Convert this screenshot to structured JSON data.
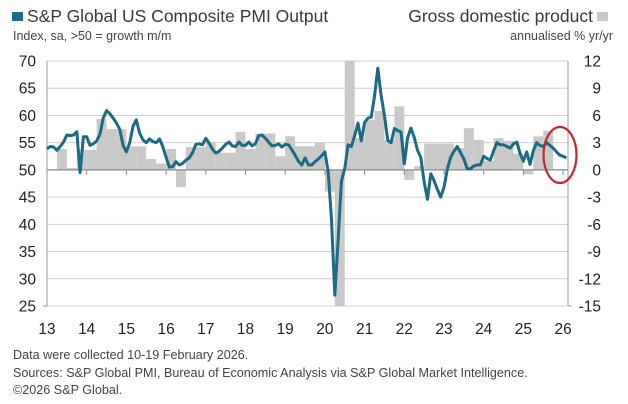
{
  "header": {
    "left_title": "S&P Global US Composite PMI Output",
    "left_subtitle": "Index, sa, >50 = growth m/m",
    "right_title": "Gross domestic product",
    "right_subtitle": "annualised % yr/yr"
  },
  "footer": {
    "line1": "Data were collected 10-19 February 2026.",
    "line2": "Sources: S&P Global PMI, Bureau of Economic Analysis via S&P Global Market Intelligence.",
    "line3": "©2026 S&P Global."
  },
  "colors": {
    "pmi": "#1b6a86",
    "gdp": "#c9c9c9",
    "highlight": "#c0282d",
    "grid": "#d0d0d0",
    "axis": "#9a9a9a"
  },
  "chart_data": {
    "type": "bar+line",
    "title": "",
    "grid": true,
    "legend": "top",
    "annotations": [
      "red ellipse highlighting latest readings"
    ],
    "x_tick_labels": [
      "13",
      "14",
      "15",
      "16",
      "17",
      "18",
      "19",
      "20",
      "21",
      "22",
      "23",
      "24",
      "25",
      "26"
    ],
    "x_range": [
      "2013-01",
      "2026-02"
    ],
    "left_axis": {
      "label": "Index, sa, >50 = growth m/m",
      "ylim": [
        25,
        70
      ],
      "ticks": [
        "70",
        "65",
        "60",
        "55",
        "50",
        "45",
        "40",
        "35",
        "30",
        "25"
      ]
    },
    "right_axis": {
      "label": "annualised % yr/yr",
      "ylim": [
        -15,
        12
      ],
      "ticks": [
        "12",
        "9",
        "6",
        "3",
        "0",
        "-3",
        "-6",
        "-9",
        "-12",
        "-15"
      ]
    },
    "series": [
      {
        "name": "S&P Global US Composite PMI Output",
        "type": "line",
        "axis": "left",
        "x": [
          "2013-01",
          "2013-02",
          "2013-03",
          "2013-04",
          "2013-05",
          "2013-06",
          "2013-07",
          "2013-08",
          "2013-09",
          "2013-10",
          "2013-11",
          "2013-12",
          "2014-01",
          "2014-02",
          "2014-03",
          "2014-04",
          "2014-05",
          "2014-06",
          "2014-07",
          "2014-08",
          "2014-09",
          "2014-10",
          "2014-11",
          "2014-12",
          "2015-01",
          "2015-02",
          "2015-03",
          "2015-04",
          "2015-05",
          "2015-06",
          "2015-07",
          "2015-08",
          "2015-09",
          "2015-10",
          "2015-11",
          "2015-12",
          "2016-01",
          "2016-02",
          "2016-03",
          "2016-04",
          "2016-05",
          "2016-06",
          "2016-07",
          "2016-08",
          "2016-09",
          "2016-10",
          "2016-11",
          "2016-12",
          "2017-01",
          "2017-02",
          "2017-03",
          "2017-04",
          "2017-05",
          "2017-06",
          "2017-07",
          "2017-08",
          "2017-09",
          "2017-10",
          "2017-11",
          "2017-12",
          "2018-01",
          "2018-02",
          "2018-03",
          "2018-04",
          "2018-05",
          "2018-06",
          "2018-07",
          "2018-08",
          "2018-09",
          "2018-10",
          "2018-11",
          "2018-12",
          "2019-01",
          "2019-02",
          "2019-03",
          "2019-04",
          "2019-05",
          "2019-06",
          "2019-07",
          "2019-08",
          "2019-09",
          "2019-10",
          "2019-11",
          "2019-12",
          "2020-01",
          "2020-02",
          "2020-03",
          "2020-04",
          "2020-05",
          "2020-06",
          "2020-07",
          "2020-08",
          "2020-09",
          "2020-10",
          "2020-11",
          "2020-12",
          "2021-01",
          "2021-02",
          "2021-03",
          "2021-04",
          "2021-05",
          "2021-06",
          "2021-07",
          "2021-08",
          "2021-09",
          "2021-10",
          "2021-11",
          "2021-12",
          "2022-01",
          "2022-02",
          "2022-03",
          "2022-04",
          "2022-05",
          "2022-06",
          "2022-07",
          "2022-08",
          "2022-09",
          "2022-10",
          "2022-11",
          "2022-12",
          "2023-01",
          "2023-02",
          "2023-03",
          "2023-04",
          "2023-05",
          "2023-06",
          "2023-07",
          "2023-08",
          "2023-09",
          "2023-10",
          "2023-11",
          "2023-12",
          "2024-01",
          "2024-02",
          "2024-03",
          "2024-04",
          "2024-05",
          "2024-06",
          "2024-07",
          "2024-08",
          "2024-09",
          "2024-10",
          "2024-11",
          "2024-12",
          "2025-01",
          "2025-02",
          "2025-03",
          "2025-04",
          "2025-05",
          "2025-06",
          "2025-07",
          "2025-08",
          "2025-09",
          "2025-10",
          "2025-11",
          "2025-12",
          "2026-01",
          "2026-02"
        ],
        "values": [
          53.9,
          54.3,
          54.2,
          53.6,
          54.3,
          55.1,
          56.4,
          56.3,
          56.4,
          57.0,
          49.5,
          56.1,
          56.1,
          54.5,
          54.8,
          55.3,
          56.5,
          59.5,
          60.9,
          60.3,
          59.5,
          58.6,
          57.4,
          54.5,
          53.3,
          55.0,
          58.0,
          59.2,
          56.8,
          55.5,
          55.0,
          55.7,
          55.2,
          55.0,
          55.7,
          54.3,
          52.3,
          50.5,
          50.6,
          51.5,
          50.9,
          51.2,
          51.8,
          52.2,
          53.2,
          54.7,
          54.8,
          54.6,
          55.8,
          54.9,
          53.8,
          53.1,
          53.4,
          54.0,
          54.7,
          55.1,
          54.4,
          54.3,
          55.1,
          54.5,
          54.5,
          55.1,
          54.4,
          54.8,
          56.3,
          56.4,
          55.8,
          55.1,
          54.4,
          54.5,
          54.8,
          54.2,
          54.7,
          54.6,
          53.7,
          52.7,
          51.6,
          50.9,
          52.2,
          50.9,
          50.9,
          51.5,
          52.0,
          52.6,
          53.3,
          49.6,
          40.9,
          27.0,
          37.0,
          47.9,
          50.3,
          54.6,
          54.3,
          56.3,
          58.6,
          55.3,
          58.7,
          59.5,
          59.7,
          63.5,
          68.7,
          63.7,
          59.9,
          55.4,
          55.0,
          57.6,
          57.2,
          57.0,
          51.1,
          55.9,
          57.7,
          56.0,
          53.6,
          52.3,
          47.7,
          44.6,
          49.3,
          48.0,
          46.4,
          45.0,
          46.8,
          50.1,
          52.3,
          53.4,
          54.3,
          53.2,
          52.0,
          50.2,
          50.2,
          50.7,
          50.9,
          50.9,
          52.5,
          52.1,
          51.8,
          53.5,
          55.0,
          54.6,
          54.6,
          54.3,
          54.0,
          54.8,
          55.1,
          53.0,
          51.6,
          53.3,
          51.0,
          53.5,
          55.0,
          54.5,
          54.3,
          55.0,
          54.5,
          54.0,
          53.3,
          52.7,
          52.5,
          52.2
        ]
      },
      {
        "name": "Gross domestic product",
        "type": "bar",
        "axis": "right",
        "x": [
          "2013Q1",
          "2013Q2",
          "2013Q3",
          "2013Q4",
          "2014Q1",
          "2014Q2",
          "2014Q3",
          "2014Q4",
          "2015Q1",
          "2015Q2",
          "2015Q3",
          "2015Q4",
          "2016Q1",
          "2016Q2",
          "2016Q3",
          "2016Q4",
          "2017Q1",
          "2017Q2",
          "2017Q3",
          "2017Q4",
          "2018Q1",
          "2018Q2",
          "2018Q3",
          "2018Q4",
          "2019Q1",
          "2019Q2",
          "2019Q3",
          "2019Q4",
          "2020Q1",
          "2020Q2",
          "2020Q3",
          "2020Q4",
          "2021Q1",
          "2021Q2",
          "2021Q3",
          "2021Q4",
          "2022Q1",
          "2022Q2",
          "2022Q3",
          "2022Q4",
          "2023Q1",
          "2023Q2",
          "2023Q3",
          "2023Q4",
          "2024Q1",
          "2024Q2",
          "2024Q3",
          "2024Q4",
          "2025Q1",
          "2025Q2",
          "2025Q3"
        ],
        "values": [
          0.0,
          2.3,
          0.2,
          2.2,
          2.2,
          5.6,
          4.5,
          4.5,
          2.6,
          2.6,
          1.2,
          0.7,
          2.3,
          -1.9,
          2.5,
          2.5,
          3.1,
          1.9,
          1.9,
          4.2,
          2.3,
          4.0,
          4.0,
          1.5,
          3.7,
          2.6,
          2.6,
          3.0,
          -2.4,
          -15,
          12,
          3.5,
          5.5,
          6.5,
          3.3,
          7.0,
          -1.1,
          0.4,
          2.9,
          2.9,
          2.9,
          2.4,
          4.6,
          3.3,
          1.0,
          3.5,
          3.2,
          1.8,
          -0.5,
          3.7,
          4.3
        ]
      }
    ]
  }
}
